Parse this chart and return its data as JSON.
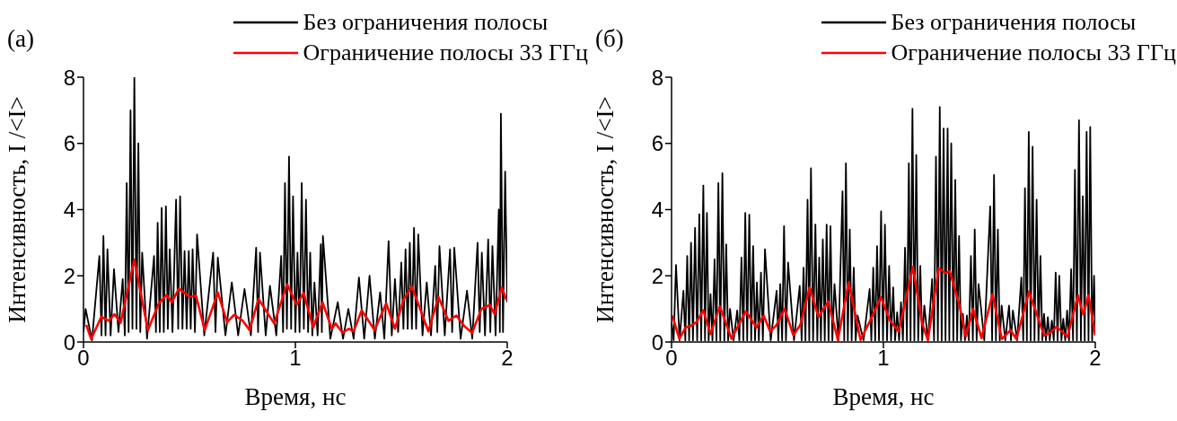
{
  "chart_data": [
    {
      "type": "line",
      "annotations": [
        "(а)"
      ],
      "xlabel": "Время, нс",
      "ylabel": "Интенсивность, I /<I>",
      "xlim": [
        0,
        2
      ],
      "xticks": [
        0,
        1,
        2
      ],
      "ylim": [
        0,
        8
      ],
      "yticks": [
        0,
        2,
        4,
        6,
        8
      ],
      "legend": "top right",
      "series": [
        {
          "name": "Без ограничения полосы",
          "color": "#000000",
          "x": [
            0,
            0.01,
            0.04,
            0.075,
            0.085,
            0.094,
            0.104,
            0.113,
            0.128,
            0.144,
            0.165,
            0.185,
            0.195,
            0.204,
            0.213,
            0.222,
            0.231,
            0.24,
            0.25,
            0.259,
            0.268,
            0.277,
            0.3,
            0.333,
            0.342,
            0.35,
            0.36,
            0.369,
            0.379,
            0.389,
            0.398,
            0.407,
            0.42,
            0.437,
            0.447,
            0.456,
            0.467,
            0.477,
            0.487,
            0.497,
            0.506,
            0.515,
            0.526,
            0.536,
            0.57,
            0.612,
            0.623,
            0.634,
            0.67,
            0.7,
            0.73,
            0.76,
            0.79,
            0.815,
            0.824,
            0.833,
            0.86,
            0.88,
            0.91,
            0.933,
            0.942,
            0.951,
            0.96,
            0.97,
            0.98,
            0.989,
            1.0,
            1.01,
            1.02,
            1.03,
            1.04,
            1.05,
            1.06,
            1.07,
            1.08,
            1.09,
            1.105,
            1.12,
            1.125,
            1.13,
            1.165,
            1.2,
            1.225,
            1.25,
            1.275,
            1.3,
            1.325,
            1.35,
            1.375,
            1.4,
            1.42,
            1.44,
            1.455,
            1.47,
            1.485,
            1.5,
            1.51,
            1.52,
            1.53,
            1.54,
            1.55,
            1.56,
            1.57,
            1.58,
            1.6,
            1.62,
            1.64,
            1.66,
            1.67,
            1.68,
            1.705,
            1.73,
            1.74,
            1.75,
            1.78,
            1.81,
            1.835,
            1.86,
            1.87,
            1.88,
            1.895,
            1.91,
            1.92,
            1.93,
            1.945,
            1.96,
            1.965,
            1.97,
            1.98,
            1.99,
            2.0
          ],
          "values": [
            0.3,
            1.0,
            0.05,
            2.6,
            0.2,
            3.2,
            0.2,
            2.8,
            0.2,
            2.2,
            0.3,
            1.9,
            0.2,
            4.8,
            0.3,
            7.0,
            0.4,
            8.0,
            0.4,
            6.0,
            0.3,
            2.7,
            0.1,
            2.6,
            0.3,
            3.6,
            0.3,
            4.05,
            0.3,
            4.1,
            0.4,
            2.8,
            0.3,
            4.3,
            0.4,
            4.4,
            0.4,
            2.75,
            0.4,
            2.75,
            0.4,
            2.8,
            0.3,
            3.25,
            0.2,
            2.7,
            0.3,
            2.55,
            0.2,
            1.8,
            0.2,
            1.6,
            0.2,
            2.85,
            0.3,
            2.7,
            0.2,
            1.7,
            0.2,
            2.6,
            0.3,
            4.8,
            0.4,
            5.6,
            0.4,
            4.4,
            0.3,
            2.7,
            0.3,
            4.8,
            0.4,
            4.3,
            0.3,
            2.7,
            0.2,
            1.8,
            0.2,
            2.95,
            0.3,
            3.2,
            0.1,
            1.2,
            0.1,
            1.0,
            0.1,
            1.95,
            0.1,
            2.0,
            0.1,
            1.5,
            0.1,
            3.05,
            0.2,
            1.9,
            0.3,
            2.4,
            0.4,
            2.8,
            0.4,
            3.0,
            0.4,
            3.45,
            0.4,
            3.25,
            0.2,
            1.8,
            0.2,
            2.3,
            0.3,
            2.9,
            0.2,
            2.8,
            0.3,
            2.85,
            0.1,
            1.55,
            0.1,
            3.0,
            0.3,
            2.7,
            0.2,
            3.1,
            0.3,
            2.9,
            0.2,
            4.0,
            0.3,
            6.9,
            0.3,
            5.15,
            1.2
          ]
        },
        {
          "name": "Ограничение полосы 33 ГГц",
          "color": "#ff0000",
          "x": [
            0.013,
            0.036,
            0.084,
            0.12,
            0.146,
            0.175,
            0.24,
            0.304,
            0.355,
            0.392,
            0.417,
            0.45,
            0.502,
            0.531,
            0.572,
            0.634,
            0.678,
            0.711,
            0.752,
            0.784,
            0.826,
            0.9,
            0.961,
            1.006,
            1.039,
            1.084,
            1.128,
            1.172,
            1.19,
            1.223,
            1.252,
            1.275,
            1.313,
            1.374,
            1.429,
            1.47,
            1.51,
            1.55,
            1.628,
            1.675,
            1.723,
            1.76,
            1.797,
            1.834,
            1.878,
            1.918,
            1.94,
            1.974,
            1.996
          ],
          "values": [
            0.52,
            0.09,
            0.76,
            0.64,
            0.84,
            0.58,
            2.49,
            0.36,
            1.16,
            1.42,
            1.2,
            1.61,
            1.36,
            1.4,
            0.36,
            1.49,
            0.6,
            0.82,
            0.64,
            0.36,
            1.3,
            0.56,
            1.75,
            1.12,
            1.48,
            0.44,
            1.2,
            0.4,
            0.56,
            0.28,
            0.4,
            0.32,
            0.96,
            0.36,
            1.17,
            0.4,
            1.27,
            1.67,
            0.32,
            1.36,
            0.64,
            0.8,
            0.48,
            0.28,
            1.0,
            1.12,
            0.84,
            1.65,
            1.27
          ]
        }
      ]
    },
    {
      "type": "line",
      "annotations": [
        "(б)"
      ],
      "xlabel": "Время, нс",
      "ylabel": "Интенсивность, I /<I>",
      "xlim": [
        0,
        2
      ],
      "xticks": [
        0,
        1,
        2
      ],
      "ylim": [
        0,
        8
      ],
      "yticks": [
        0,
        2,
        4,
        6,
        8
      ],
      "legend": "top right",
      "series": [
        {
          "name": "Без ограничения полосы",
          "color": "#000000",
          "x": [
            0,
            0.01,
            0.021,
            0.038,
            0.056,
            0.065,
            0.074,
            0.083,
            0.092,
            0.101,
            0.111,
            0.121,
            0.131,
            0.14,
            0.15,
            0.158,
            0.167,
            0.175,
            0.184,
            0.193,
            0.203,
            0.212,
            0.221,
            0.23,
            0.24,
            0.249,
            0.258,
            0.267,
            0.276,
            0.293,
            0.31,
            0.32,
            0.33,
            0.339,
            0.348,
            0.357,
            0.367,
            0.376,
            0.385,
            0.394,
            0.403,
            0.412,
            0.422,
            0.431,
            0.441,
            0.468,
            0.496,
            0.504,
            0.513,
            0.522,
            0.531,
            0.54,
            0.55,
            0.578,
            0.605,
            0.614,
            0.623,
            0.632,
            0.642,
            0.65,
            0.658,
            0.668,
            0.679,
            0.688,
            0.697,
            0.705,
            0.714,
            0.723,
            0.732,
            0.741,
            0.75,
            0.759,
            0.769,
            0.788,
            0.807,
            0.815,
            0.823,
            0.832,
            0.841,
            0.85,
            0.86,
            0.869,
            0.878,
            0.906,
            0.935,
            0.943,
            0.952,
            0.961,
            0.97,
            0.979,
            0.989,
            0.998,
            1.007,
            1.017,
            1.027,
            1.036,
            1.046,
            1.055,
            1.065,
            1.074,
            1.083,
            1.092,
            1.102,
            1.111,
            1.12,
            1.128,
            1.137,
            1.146,
            1.155,
            1.164,
            1.174,
            1.183,
            1.193,
            1.21,
            1.23,
            1.239,
            1.248,
            1.257,
            1.266,
            1.275,
            1.284,
            1.293,
            1.303,
            1.311,
            1.32,
            1.33,
            1.339,
            1.348,
            1.357,
            1.366,
            1.375,
            1.385,
            1.394,
            1.403,
            1.413,
            1.422,
            1.431,
            1.44,
            1.449,
            1.476,
            1.504,
            1.513,
            1.522,
            1.531,
            1.54,
            1.549,
            1.558,
            1.575,
            1.593,
            1.602,
            1.611,
            1.631,
            1.651,
            1.66,
            1.668,
            1.677,
            1.686,
            1.695,
            1.704,
            1.713,
            1.723,
            1.732,
            1.741,
            1.75,
            1.758,
            1.767,
            1.776,
            1.785,
            1.795,
            1.804,
            1.813,
            1.822,
            1.83,
            1.84,
            1.849,
            1.858,
            1.867,
            1.876,
            1.886,
            1.895,
            1.904,
            1.913,
            1.923,
            1.932,
            1.941,
            1.95,
            1.959,
            1.968,
            1.976,
            1.985,
            1.994,
            2.0
          ],
          "values": [
            0.6,
            0.05,
            2.33,
            0.05,
            1.55,
            0.05,
            2.6,
            0.05,
            3.0,
            0.05,
            3.45,
            0.05,
            3.86,
            0.05,
            4.73,
            0.05,
            3.9,
            0.05,
            1.45,
            0.05,
            2.5,
            0.05,
            4.8,
            0.05,
            5.1,
            0.05,
            2.95,
            0.05,
            1.0,
            0.05,
            0.95,
            0.05,
            2.55,
            0.05,
            3.9,
            0.05,
            3.85,
            0.05,
            2.9,
            0.05,
            1.8,
            0.05,
            2.1,
            0.05,
            2.8,
            0.05,
            1.55,
            0.05,
            1.75,
            0.05,
            3.5,
            0.05,
            2.4,
            0.05,
            1.7,
            0.05,
            2.25,
            0.05,
            4.3,
            0.05,
            5.25,
            0.05,
            3.55,
            0.05,
            2.55,
            0.05,
            3.1,
            0.05,
            3.55,
            0.05,
            3.5,
            0.05,
            1.75,
            0.05,
            4.55,
            0.05,
            5.4,
            0.05,
            3.4,
            0.05,
            2.25,
            0.05,
            0.8,
            0.05,
            1.6,
            0.05,
            2.25,
            0.05,
            2.9,
            0.05,
            3.95,
            0.05,
            3.55,
            0.05,
            2.3,
            0.05,
            1.65,
            0.05,
            0.9,
            0.05,
            1.2,
            0.05,
            2.85,
            0.05,
            5.4,
            0.05,
            7.05,
            0.05,
            5.65,
            0.05,
            2.3,
            0.05,
            1.1,
            0.05,
            1.9,
            0.05,
            5.6,
            0.05,
            7.1,
            0.05,
            6.45,
            0.05,
            6.45,
            0.05,
            6.0,
            0.05,
            4.9,
            0.05,
            3.2,
            0.05,
            0.85,
            0.05,
            0.8,
            0.05,
            2.6,
            0.05,
            3.4,
            0.05,
            1.75,
            0.05,
            4.1,
            0.05,
            5.05,
            0.05,
            3.4,
            0.05,
            1.1,
            0.05,
            1.1,
            0.05,
            0.95,
            0.05,
            1.95,
            0.05,
            4.65,
            0.05,
            6.35,
            0.05,
            5.9,
            0.05,
            4.3,
            0.05,
            2.6,
            0.05,
            0.85,
            0.05,
            0.75,
            0.05,
            0.65,
            0.05,
            2.1,
            0.05,
            2.0,
            0.05,
            0.7,
            0.05,
            0.95,
            0.05,
            2.2,
            0.05,
            5.2,
            0.05,
            6.7,
            0.05,
            4.4,
            0.05,
            6.35,
            0.05,
            6.5,
            0.05,
            2.0,
            0.3
          ]
        },
        {
          "name": "Ограничение полосы 33 ГГц",
          "color": "#ff0000",
          "x": [
            0.004,
            0.037,
            0.066,
            0.088,
            0.118,
            0.15,
            0.184,
            0.228,
            0.283,
            0.351,
            0.401,
            0.435,
            0.465,
            0.494,
            0.534,
            0.575,
            0.608,
            0.652,
            0.693,
            0.74,
            0.785,
            0.836,
            0.892,
            0.937,
            0.988,
            1.032,
            1.072,
            1.139,
            1.183,
            1.21,
            1.261,
            1.294,
            1.313,
            1.36,
            1.389,
            1.423,
            1.463,
            1.515,
            1.559,
            1.6,
            1.628,
            1.687,
            1.758,
            1.788,
            1.817,
            1.869,
            1.918,
            1.943,
            1.968,
            2.0
          ],
          "values": [
            0.8,
            0.09,
            0.44,
            0.48,
            0.6,
            0.96,
            0.24,
            1.08,
            0.1,
            0.93,
            0.44,
            0.8,
            0.32,
            0.5,
            1.0,
            0.2,
            0.52,
            1.65,
            0.76,
            1.22,
            0.06,
            1.81,
            0.06,
            0.64,
            1.35,
            0.64,
            0.32,
            2.27,
            0.56,
            0.06,
            2.23,
            2.08,
            2.14,
            1.08,
            0.16,
            1.0,
            0.12,
            1.44,
            0.09,
            0.36,
            0.09,
            1.52,
            0.2,
            0.28,
            0.46,
            0.16,
            1.41,
            0.84,
            1.41,
            0.2
          ]
        }
      ]
    }
  ]
}
